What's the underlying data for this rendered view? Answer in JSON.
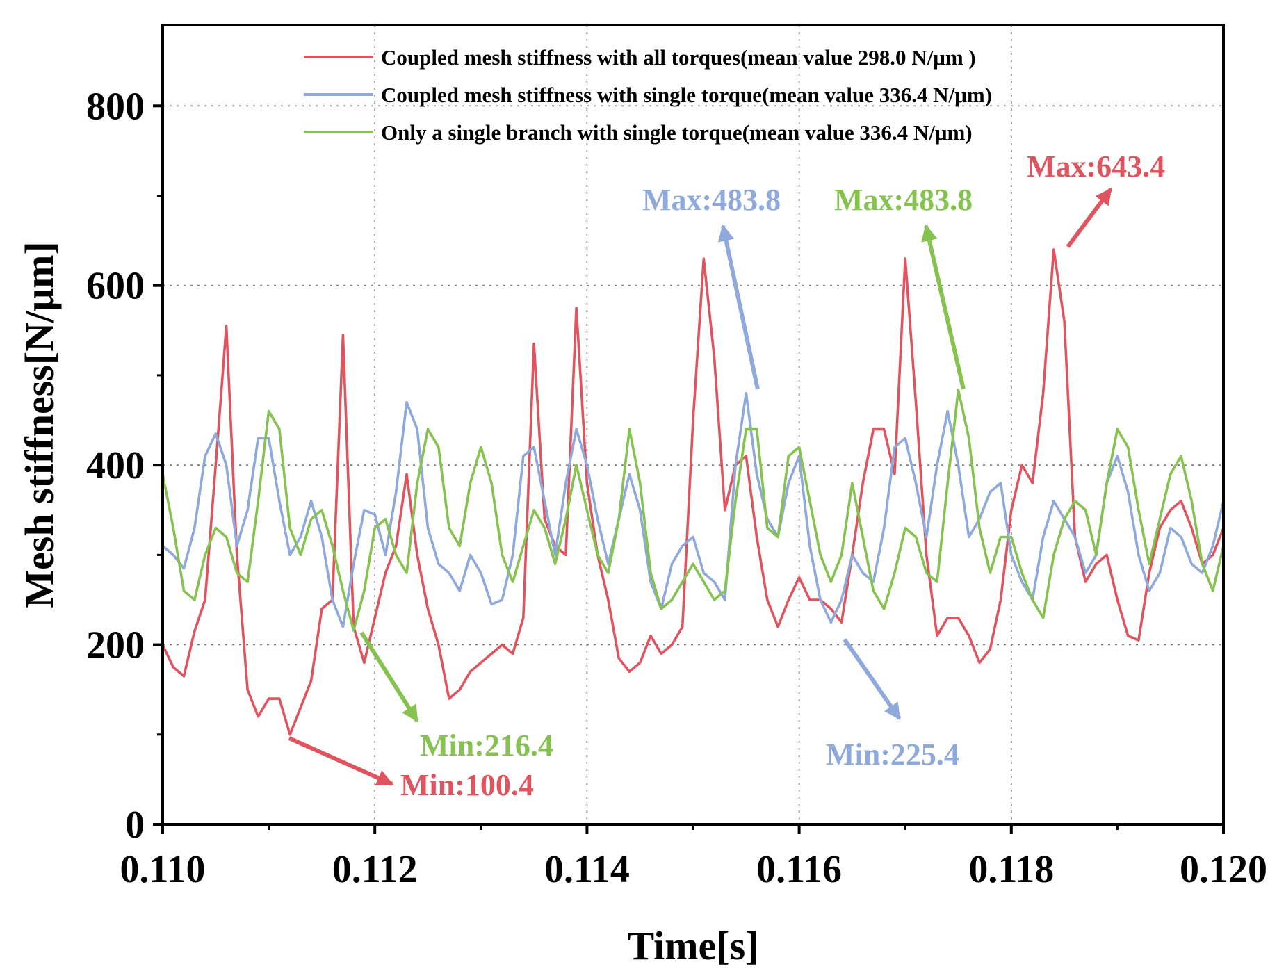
{
  "chart_data": {
    "type": "line",
    "xlabel": "Time[s]",
    "ylabel": "Mesh stiffness[N/μm]",
    "xlim": [
      0.11,
      0.12
    ],
    "ylim": [
      0,
      890
    ],
    "xticks": [
      0.11,
      0.112,
      0.114,
      0.116,
      0.118,
      0.12
    ],
    "xtick_labels": [
      "0.110",
      "0.112",
      "0.114",
      "0.116",
      "0.118",
      "0.120"
    ],
    "yticks": [
      0,
      200,
      400,
      600,
      800
    ],
    "ytick_labels": [
      "0",
      "200",
      "400",
      "600",
      "800"
    ],
    "grid": true,
    "legend_position": "top",
    "series": [
      {
        "name": "Coupled mesh stiffness with all torques(mean value 298.0 N/μm )",
        "color": "#e0545f",
        "x": [
          0.11,
          0.1101,
          0.1102,
          0.1103,
          0.1104,
          0.1105,
          0.1106,
          0.1107,
          0.1108,
          0.1109,
          0.111,
          0.1111,
          0.1112,
          0.1113,
          0.1114,
          0.1115,
          0.1116,
          0.1117,
          0.1118,
          0.1119,
          0.112,
          0.1121,
          0.1122,
          0.1123,
          0.1124,
          0.1125,
          0.1126,
          0.1127,
          0.1128,
          0.1129,
          0.113,
          0.1131,
          0.1132,
          0.1133,
          0.1134,
          0.1135,
          0.1136,
          0.1137,
          0.1138,
          0.1139,
          0.114,
          0.1141,
          0.1142,
          0.1143,
          0.1144,
          0.1145,
          0.1146,
          0.1147,
          0.1148,
          0.1149,
          0.115,
          0.1151,
          0.1152,
          0.1153,
          0.1154,
          0.1155,
          0.1156,
          0.1157,
          0.1158,
          0.1159,
          0.116,
          0.1161,
          0.1162,
          0.1163,
          0.1164,
          0.1165,
          0.1166,
          0.1167,
          0.1168,
          0.1169,
          0.117,
          0.1171,
          0.1172,
          0.1173,
          0.1174,
          0.1175,
          0.1176,
          0.1177,
          0.1178,
          0.1179,
          0.118,
          0.1181,
          0.1182,
          0.1183,
          0.1184,
          0.1185,
          0.1186,
          0.1187,
          0.1188,
          0.1189,
          0.119,
          0.1191,
          0.1192,
          0.1193,
          0.1194,
          0.1195,
          0.1196,
          0.1197,
          0.1198,
          0.1199,
          0.12
        ],
        "values": [
          200,
          175,
          165,
          215,
          250,
          400,
          555,
          300,
          150,
          120,
          140,
          140,
          100,
          130,
          160,
          240,
          250,
          545,
          220,
          180,
          230,
          280,
          310,
          390,
          300,
          240,
          200,
          140,
          150,
          170,
          180,
          190,
          200,
          190,
          230,
          535,
          340,
          310,
          300,
          575,
          380,
          300,
          250,
          185,
          170,
          180,
          210,
          190,
          200,
          220,
          450,
          630,
          520,
          350,
          400,
          410,
          320,
          250,
          220,
          250,
          275,
          250,
          250,
          240,
          225,
          300,
          380,
          440,
          440,
          390,
          630,
          470,
          300,
          210,
          230,
          230,
          210,
          180,
          195,
          250,
          350,
          400,
          380,
          480,
          640,
          560,
          320,
          270,
          290,
          300,
          250,
          210,
          205,
          280,
          330,
          350,
          360,
          330,
          290,
          300,
          330
        ]
      },
      {
        "name": "Coupled mesh stiffness with single torque(mean value 336.4 N/μm)",
        "color": "#8fa9dc",
        "x": [
          0.11,
          0.1101,
          0.1102,
          0.1103,
          0.1104,
          0.1105,
          0.1106,
          0.1107,
          0.1108,
          0.1109,
          0.111,
          0.1111,
          0.1112,
          0.1113,
          0.1114,
          0.1115,
          0.1116,
          0.1117,
          0.1118,
          0.1119,
          0.112,
          0.1121,
          0.1122,
          0.1123,
          0.1124,
          0.1125,
          0.1126,
          0.1127,
          0.1128,
          0.1129,
          0.113,
          0.1131,
          0.1132,
          0.1133,
          0.1134,
          0.1135,
          0.1136,
          0.1137,
          0.1138,
          0.1139,
          0.114,
          0.1141,
          0.1142,
          0.1143,
          0.1144,
          0.1145,
          0.1146,
          0.1147,
          0.1148,
          0.1149,
          0.115,
          0.1151,
          0.1152,
          0.1153,
          0.1154,
          0.1155,
          0.1156,
          0.1157,
          0.1158,
          0.1159,
          0.116,
          0.1161,
          0.1162,
          0.1163,
          0.1164,
          0.1165,
          0.1166,
          0.1167,
          0.1168,
          0.1169,
          0.117,
          0.1171,
          0.1172,
          0.1173,
          0.1174,
          0.1175,
          0.1176,
          0.1177,
          0.1178,
          0.1179,
          0.118,
          0.1181,
          0.1182,
          0.1183,
          0.1184,
          0.1185,
          0.1186,
          0.1187,
          0.1188,
          0.1189,
          0.119,
          0.1191,
          0.1192,
          0.1193,
          0.1194,
          0.1195,
          0.1196,
          0.1197,
          0.1198,
          0.1199,
          0.12
        ],
        "values": [
          310,
          300,
          285,
          330,
          410,
          435,
          400,
          310,
          350,
          430,
          430,
          360,
          300,
          320,
          360,
          320,
          250,
          220,
          290,
          350,
          345,
          300,
          370,
          470,
          440,
          330,
          290,
          280,
          260,
          300,
          280,
          245,
          250,
          300,
          410,
          420,
          360,
          300,
          380,
          440,
          400,
          340,
          290,
          340,
          390,
          350,
          270,
          240,
          290,
          310,
          320,
          280,
          270,
          250,
          400,
          480,
          390,
          340,
          320,
          380,
          410,
          310,
          250,
          225,
          250,
          300,
          280,
          270,
          330,
          420,
          430,
          380,
          320,
          400,
          460,
          400,
          320,
          340,
          370,
          380,
          300,
          270,
          250,
          320,
          360,
          340,
          320,
          280,
          300,
          380,
          410,
          370,
          300,
          260,
          280,
          330,
          320,
          290,
          280,
          310,
          360
        ]
      },
      {
        "name": "Only a single branch with single torque(mean value 336.4 N/μm)",
        "color": "#86c24f",
        "x": [
          0.11,
          0.1101,
          0.1102,
          0.1103,
          0.1104,
          0.1105,
          0.1106,
          0.1107,
          0.1108,
          0.1109,
          0.111,
          0.1111,
          0.1112,
          0.1113,
          0.1114,
          0.1115,
          0.1116,
          0.1117,
          0.1118,
          0.1119,
          0.112,
          0.1121,
          0.1122,
          0.1123,
          0.1124,
          0.1125,
          0.1126,
          0.1127,
          0.1128,
          0.1129,
          0.113,
          0.1131,
          0.1132,
          0.1133,
          0.1134,
          0.1135,
          0.1136,
          0.1137,
          0.1138,
          0.1139,
          0.114,
          0.1141,
          0.1142,
          0.1143,
          0.1144,
          0.1145,
          0.1146,
          0.1147,
          0.1148,
          0.1149,
          0.115,
          0.1151,
          0.1152,
          0.1153,
          0.1154,
          0.1155,
          0.1156,
          0.1157,
          0.1158,
          0.1159,
          0.116,
          0.1161,
          0.1162,
          0.1163,
          0.1164,
          0.1165,
          0.1166,
          0.1167,
          0.1168,
          0.1169,
          0.117,
          0.1171,
          0.1172,
          0.1173,
          0.1174,
          0.1175,
          0.1176,
          0.1177,
          0.1178,
          0.1179,
          0.118,
          0.1181,
          0.1182,
          0.1183,
          0.1184,
          0.1185,
          0.1186,
          0.1187,
          0.1188,
          0.1189,
          0.119,
          0.1191,
          0.1192,
          0.1193,
          0.1194,
          0.1195,
          0.1196,
          0.1197,
          0.1198,
          0.1199,
          0.12
        ],
        "values": [
          390,
          330,
          260,
          250,
          300,
          330,
          320,
          280,
          270,
          360,
          460,
          440,
          330,
          300,
          340,
          350,
          310,
          260,
          216,
          260,
          330,
          340,
          300,
          280,
          380,
          440,
          420,
          330,
          310,
          380,
          420,
          380,
          300,
          270,
          310,
          350,
          330,
          290,
          340,
          400,
          350,
          300,
          280,
          340,
          440,
          380,
          280,
          240,
          250,
          270,
          290,
          270,
          250,
          260,
          360,
          440,
          440,
          330,
          320,
          410,
          420,
          360,
          300,
          270,
          300,
          380,
          320,
          260,
          240,
          280,
          330,
          320,
          280,
          270,
          380,
          483.8,
          430,
          330,
          280,
          320,
          320,
          280,
          250,
          230,
          300,
          340,
          360,
          350,
          300,
          380,
          440,
          420,
          350,
          290,
          340,
          390,
          410,
          360,
          290,
          260,
          310
        ]
      }
    ],
    "annotations": [
      {
        "text": "Max:643.4",
        "color": "#e0545f",
        "at_x": 0.11858,
        "at_y": 643.4
      },
      {
        "text": "Max:483.8",
        "color": "#8fa9dc",
        "at_x": 0.11566,
        "at_y": 483.8
      },
      {
        "text": "Max:483.8",
        "color": "#86c24f",
        "at_x": 0.11762,
        "at_y": 483.8
      },
      {
        "text": "Min:100.4",
        "color": "#e0545f",
        "at_x": 0.1112,
        "at_y": 100.4
      },
      {
        "text": "Min:216.4",
        "color": "#86c24f",
        "at_x": 0.1118,
        "at_y": 216.4
      },
      {
        "text": "Min:225.4",
        "color": "#8fa9dc",
        "at_x": 0.11637,
        "at_y": 225.4
      }
    ]
  }
}
